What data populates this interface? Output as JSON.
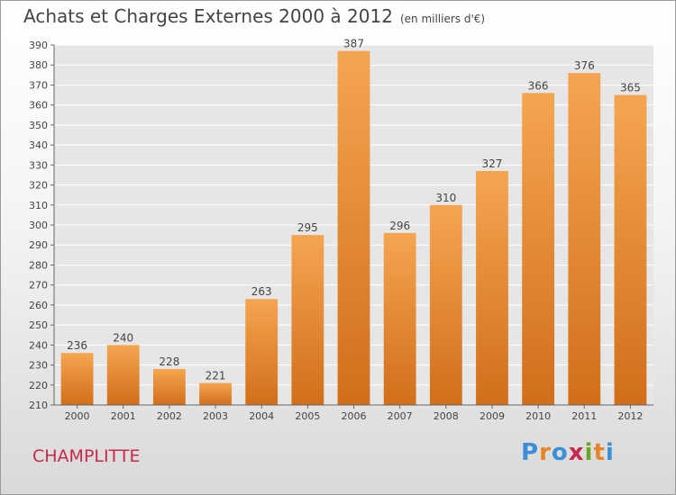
{
  "title": "Achats et Charges Externes 2000 à 2012",
  "subtitle": "(en milliers d'€)",
  "commune": "CHAMPLITTE",
  "logo": {
    "text": "Proxiti",
    "colors": [
      "#3a8fd6",
      "#e5862a",
      "#3a8fd6",
      "#c8284a",
      "#6aa52a",
      "#e5862a",
      "#3a8fd6"
    ]
  },
  "colors": {
    "bar_top": "#f5a551",
    "bar_bottom": "#d26e1a",
    "text": "#444444",
    "grid": "#ffffff"
  },
  "chart_data": {
    "type": "bar",
    "categories": [
      "2000",
      "2001",
      "2002",
      "2003",
      "2004",
      "2005",
      "2006",
      "2007",
      "2008",
      "2009",
      "2010",
      "2011",
      "2012"
    ],
    "values": [
      236,
      240,
      228,
      221,
      263,
      295,
      387,
      296,
      310,
      327,
      366,
      376,
      365
    ],
    "ylim": [
      210,
      390
    ],
    "yticks": [
      210,
      220,
      230,
      240,
      250,
      260,
      270,
      280,
      290,
      300,
      310,
      320,
      330,
      340,
      350,
      360,
      370,
      380,
      390
    ],
    "grid": true,
    "data_labels": true
  }
}
